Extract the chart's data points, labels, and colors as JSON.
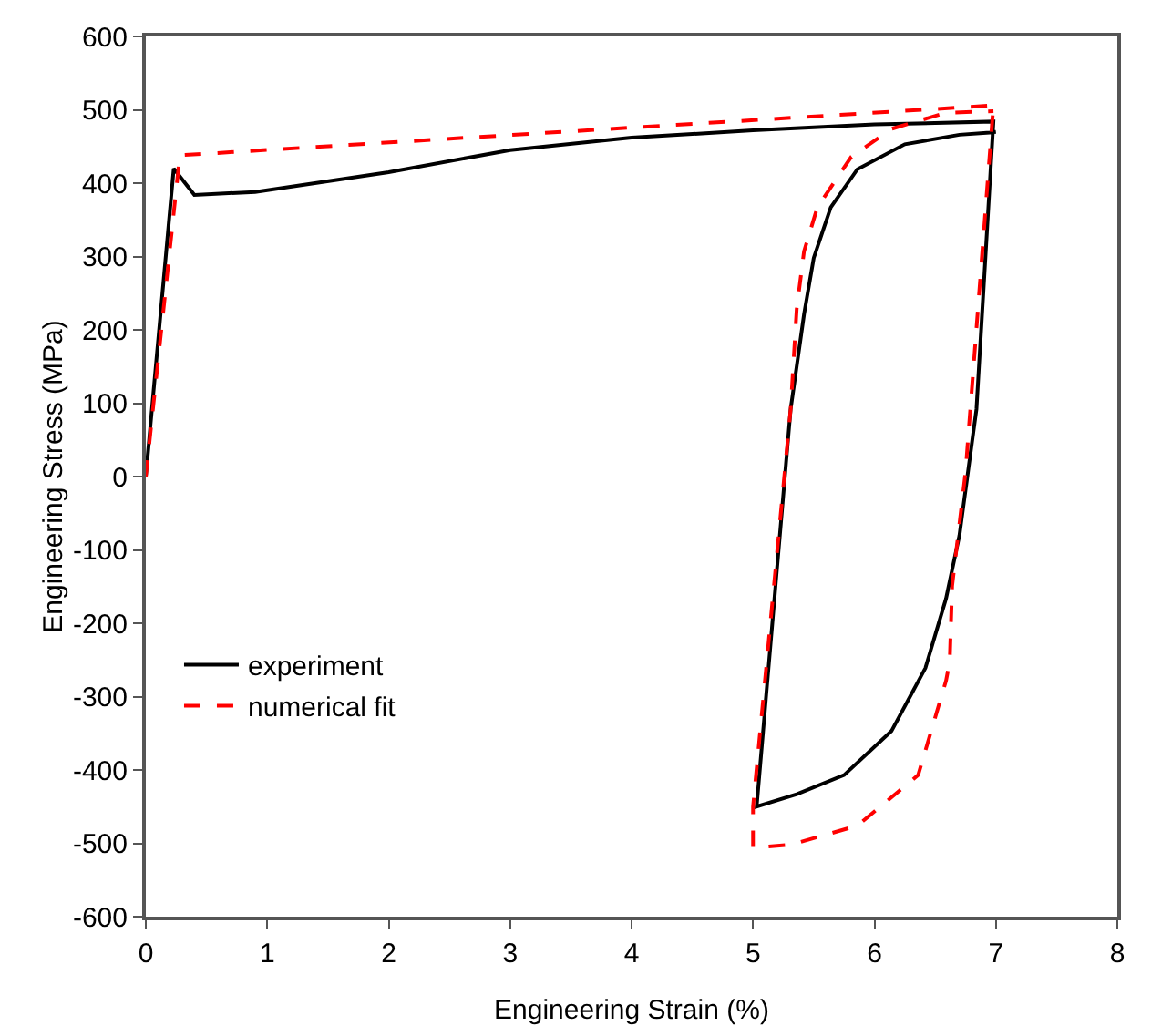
{
  "chart_data": {
    "type": "line",
    "xlabel": "Engineering Strain (%)",
    "ylabel": "Engineering Stress (MPa)",
    "xlim": [
      0,
      8
    ],
    "xticks": [
      0,
      1,
      2,
      3,
      4,
      5,
      6,
      7,
      8
    ],
    "ylim": [
      -600,
      600
    ],
    "yticks": [
      -600,
      -500,
      -400,
      -300,
      -200,
      -100,
      0,
      100,
      200,
      300,
      400,
      500,
      600
    ],
    "grid": false,
    "legend": "bottom left",
    "marker": "none",
    "series": [
      {
        "name": "experiment",
        "color": "#000000",
        "line_style": "solid",
        "x": [
          0,
          0.23,
          0.4,
          0.9,
          2,
          3,
          4,
          5,
          6,
          6.98,
          6.84,
          6.7,
          6.59,
          6.42,
          6.14,
          5.75,
          5.36,
          5.03,
          5.31,
          5.42,
          5.5,
          5.64,
          5.86,
          6.25,
          6.7,
          6.95,
          7
        ],
        "values": [
          0,
          420,
          384,
          388,
          415,
          445,
          462,
          472,
          480,
          484,
          92,
          -80,
          -166,
          -261,
          -347,
          -407,
          -433,
          -450,
          92,
          221,
          298,
          367,
          419,
          453,
          466,
          469,
          470
        ]
      },
      {
        "name": "numerical fit",
        "color": "#ff0000",
        "line_style": "dashed",
        "x": [
          0,
          0.28,
          6.98,
          6.75,
          6.64,
          6.62,
          6.59,
          6.36,
          5.86,
          5.31,
          5.0,
          5.0,
          5.31,
          5.36,
          5.42,
          5.53,
          5.81,
          6.14,
          6.59,
          6.98
        ],
        "values": [
          0,
          438,
          506,
          6,
          -149,
          -252,
          -278,
          -407,
          -476,
          -502,
          -506,
          -450,
          92,
          229,
          307,
          367,
          436,
          474,
          496,
          498
        ]
      }
    ]
  }
}
